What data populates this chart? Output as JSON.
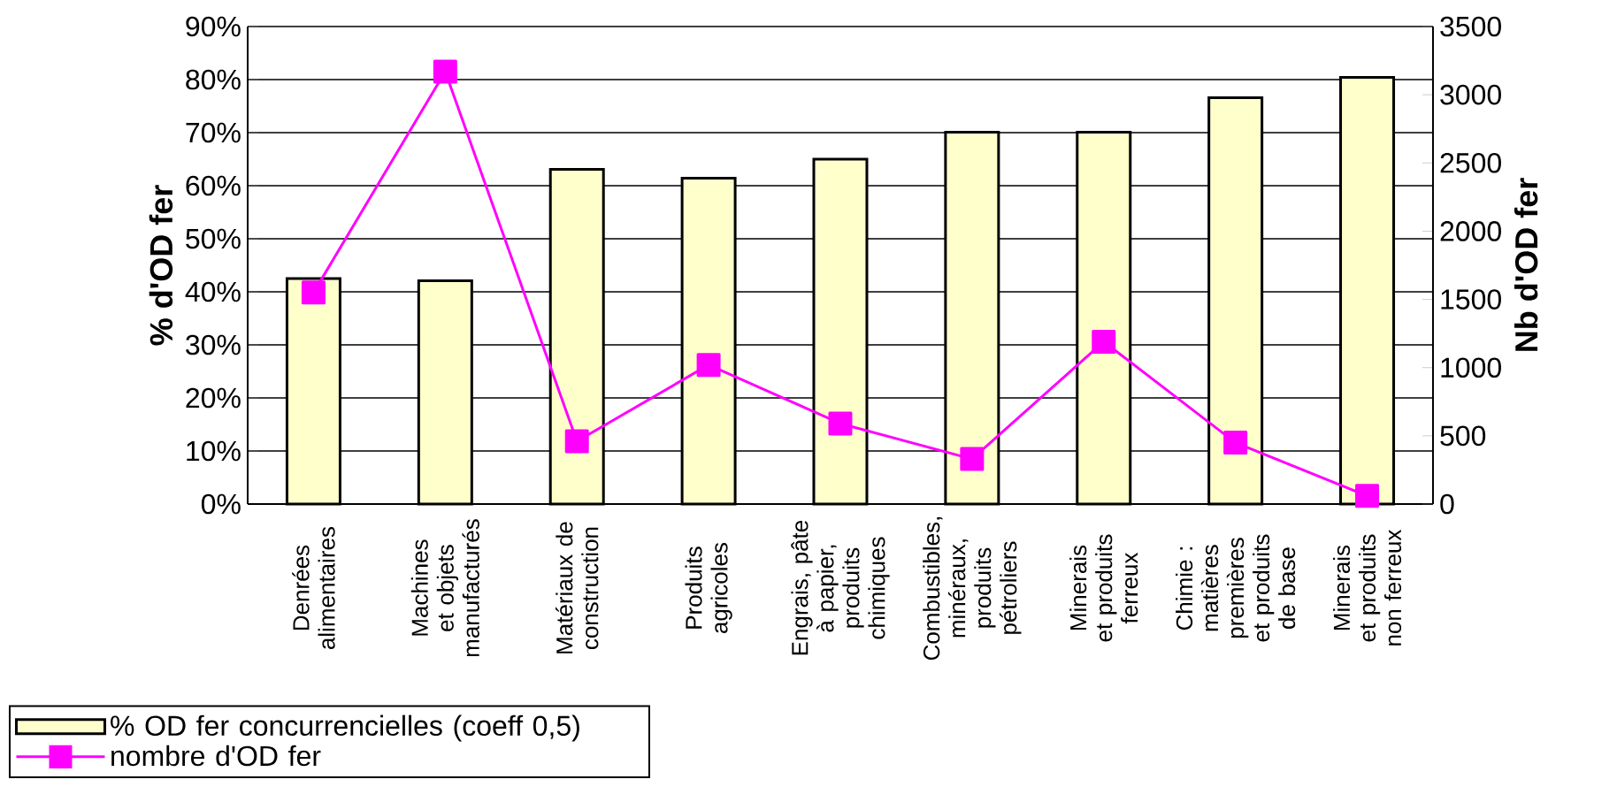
{
  "chart_data": {
    "type": "bar",
    "ylabel": "% d'OD fer",
    "y2label": "Nb d'OD fer",
    "categories": [
      "Denrées alimentaires",
      "Machines et objets manufacturés",
      "Matériaux de construction",
      "Produits agricoles",
      "Engrais, pâte à papier, produits chimiques",
      "Combustibles, minéraux, produits pétroliers",
      "Minerais et produits ferreux",
      "Chimie : matières premières et produits de base",
      "Minerais et produits non ferreux"
    ],
    "series": [
      {
        "name": "% OD fer concurrencielles (coeff 0,5)",
        "color": "#ffffcc",
        "values": [
          42.5,
          42.1,
          63.1,
          61.4,
          65.0,
          70.1,
          70.1,
          76.6,
          80.4
        ]
      },
      {
        "name": "nombre d'OD fer",
        "type": "line",
        "axis": "y2",
        "color": "#ff00ff",
        "marker": "square",
        "line_style": "solid",
        "values": [
          1550,
          3170,
          460,
          1020,
          590,
          330,
          1190,
          450,
          60
        ]
      }
    ],
    "ylim": [
      0,
      90
    ],
    "yticks": [
      {
        "value": 0,
        "label": "0%"
      },
      {
        "value": 10,
        "label": "10%"
      },
      {
        "value": 20,
        "label": "20%"
      },
      {
        "value": 30,
        "label": "30%"
      },
      {
        "value": 40,
        "label": "40%"
      },
      {
        "value": 50,
        "label": "50%"
      },
      {
        "value": 60,
        "label": "60%"
      },
      {
        "value": 70,
        "label": "70%"
      },
      {
        "value": 80,
        "label": "80%"
      },
      {
        "value": 90,
        "label": "90%"
      }
    ],
    "y2lim": [
      0,
      3500
    ],
    "y2ticks": [
      0,
      500,
      1000,
      1500,
      2000,
      2500,
      3000,
      3500
    ],
    "grid": "y",
    "legend": "bottom"
  }
}
